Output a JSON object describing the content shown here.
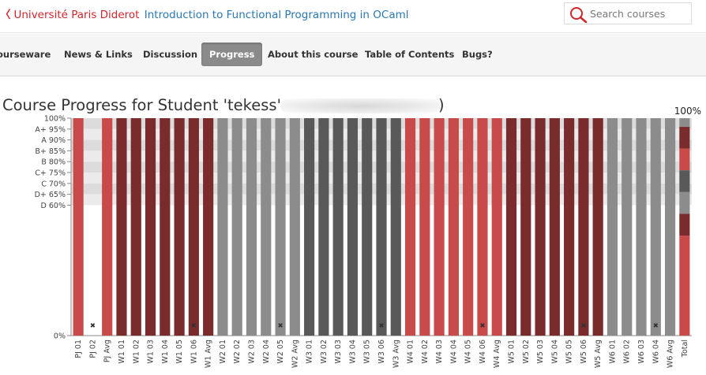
{
  "header": {
    "university": "Université Paris Diderot",
    "course_title": "Introduction to Functional Programming in OCaml",
    "search_placeholder": "Search courses",
    "search_icon": "magnifier-icon"
  },
  "nav": {
    "tabs": [
      {
        "label": "ourseware",
        "active": false
      },
      {
        "label": "News & Links",
        "active": false
      },
      {
        "label": "Discussion",
        "active": false
      },
      {
        "label": "Progress",
        "active": true
      },
      {
        "label": "About this course",
        "active": false
      },
      {
        "label": "Table of Contents",
        "active": false
      },
      {
        "label": "Bugs?",
        "active": false
      }
    ]
  },
  "page": {
    "title_prefix": "Course Progress for Student 'tekess' (",
    "title_suffix": ")"
  },
  "chart_data": {
    "type": "bar",
    "total_label": "100%",
    "y_ticks": [
      {
        "label": "100%",
        "value": 100
      },
      {
        "label": "A+ 95%",
        "value": 95
      },
      {
        "label": "A 90%",
        "value": 90
      },
      {
        "label": "B+ 85%",
        "value": 85
      },
      {
        "label": "B 80%",
        "value": 80
      },
      {
        "label": "C+ 75%",
        "value": 75
      },
      {
        "label": "C 70%",
        "value": 70
      },
      {
        "label": "D+ 65%",
        "value": 65
      },
      {
        "label": "D 60%",
        "value": 60
      },
      {
        "label": "0%",
        "value": 0
      }
    ],
    "colors": {
      "pj": "#c94a4a",
      "w1": "#7a2b2b",
      "w2": "#8c8c8c",
      "w3": "#595959",
      "w4": "#c94a4a",
      "w5": "#7a2b2b",
      "w6": "#8c8c8c",
      "band_dark": "#dcdcdc",
      "band_light": "#ebebeb",
      "marker": "#333333"
    },
    "categories": [
      "PJ 01",
      "PJ 02",
      "PJ Avg",
      "W1 01",
      "W1 02",
      "W1 03",
      "W1 04",
      "W1 05",
      "W1 06",
      "W1 Avg",
      "W2 01",
      "W2 02",
      "W2 03",
      "W2 04",
      "W2 05",
      "W2 Avg",
      "W3 01",
      "W3 02",
      "W3 03",
      "W3 04",
      "W3 05",
      "W3 06",
      "W3 Avg",
      "W4 01",
      "W4 02",
      "W4 03",
      "W4 04",
      "W4 05",
      "W4 06",
      "W4 Avg",
      "W5 01",
      "W5 02",
      "W5 03",
      "W5 04",
      "W5 05",
      "W5 06",
      "W5 Avg",
      "W6 01",
      "W6 02",
      "W6 03",
      "W6 04",
      "W6 Avg",
      "Total"
    ],
    "values": [
      100,
      0,
      100,
      100,
      100,
      100,
      100,
      100,
      100,
      100,
      100,
      100,
      100,
      100,
      100,
      100,
      100,
      100,
      100,
      100,
      100,
      100,
      100,
      100,
      100,
      100,
      100,
      100,
      100,
      100,
      100,
      100,
      100,
      100,
      100,
      100,
      100,
      100,
      100,
      100,
      100,
      100,
      100
    ],
    "groups": [
      "pj",
      "pj",
      "pj",
      "w1",
      "w1",
      "w1",
      "w1",
      "w1",
      "w1",
      "w1",
      "w2",
      "w2",
      "w2",
      "w2",
      "w2",
      "w2",
      "w3",
      "w3",
      "w3",
      "w3",
      "w3",
      "w3",
      "w3",
      "w4",
      "w4",
      "w4",
      "w4",
      "w4",
      "w4",
      "w4",
      "w5",
      "w5",
      "w5",
      "w5",
      "w5",
      "w5",
      "w5",
      "w6",
      "w6",
      "w6",
      "w6",
      "w6",
      "total"
    ],
    "dropped": [
      "PJ 02",
      "W1 06",
      "W2 05",
      "W3 06",
      "W4 06",
      "W5 06",
      "W6 04"
    ],
    "total_segments": [
      {
        "group": "w2",
        "value": 4
      },
      {
        "group": "w1",
        "value": 10
      },
      {
        "group": "pj",
        "value": 10
      },
      {
        "group": "w3",
        "value": 10
      },
      {
        "group": "w2",
        "value": 10
      },
      {
        "group": "w1",
        "value": 10
      },
      {
        "group": "pj",
        "value": 46
      }
    ]
  }
}
